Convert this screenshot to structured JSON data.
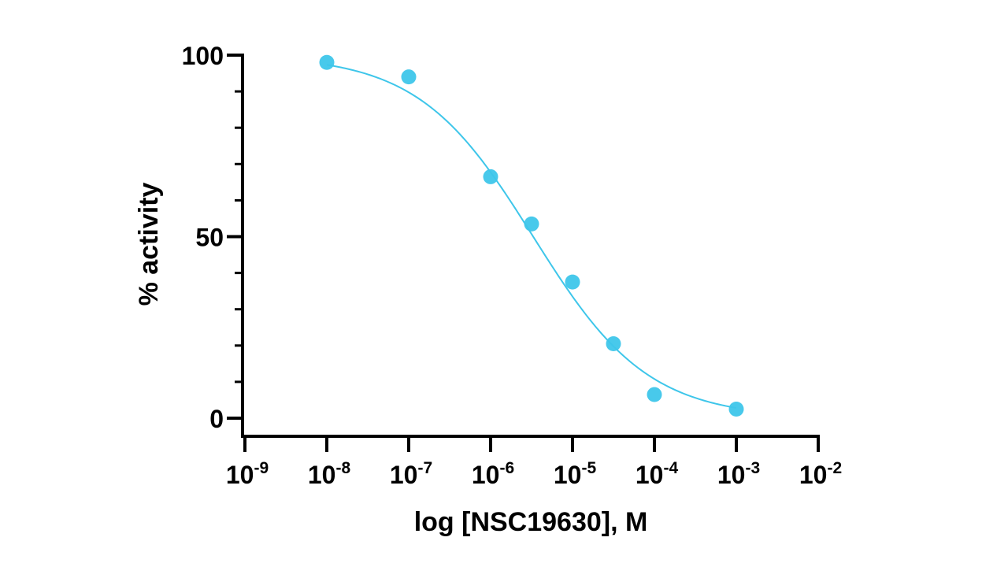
{
  "chart_data": {
    "type": "scatter",
    "title": "",
    "xlabel": "log [NSC19630], M",
    "ylabel": "% activity",
    "x_scale": "log10",
    "xlim_exponent": [
      -9,
      -2
    ],
    "ylim": [
      0,
      100
    ],
    "x_ticks": [
      {
        "base": "10",
        "exp": "-9",
        "value": -9
      },
      {
        "base": "10",
        "exp": "-8",
        "value": -8
      },
      {
        "base": "10",
        "exp": "-7",
        "value": -7
      },
      {
        "base": "10",
        "exp": "-6",
        "value": -6
      },
      {
        "base": "10",
        "exp": "-5",
        "value": -5
      },
      {
        "base": "10",
        "exp": "-4",
        "value": -4
      },
      {
        "base": "10",
        "exp": "-3",
        "value": -3
      },
      {
        "base": "10",
        "exp": "-2",
        "value": -2
      }
    ],
    "y_ticks": [
      {
        "label": "0",
        "value": 0
      },
      {
        "label": "50",
        "value": 50
      },
      {
        "label": "100",
        "value": 100
      }
    ],
    "y_minor_step": 10,
    "series": [
      {
        "name": "NSC19630",
        "color": "#3ec6ea",
        "points": [
          {
            "log_x": -8,
            "y": 98
          },
          {
            "log_x": -7,
            "y": 94
          },
          {
            "log_x": -6,
            "y": 66.5
          },
          {
            "log_x": -5.5,
            "y": 53.5
          },
          {
            "log_x": -5,
            "y": 37.5
          },
          {
            "log_x": -4.5,
            "y": 20.5
          },
          {
            "log_x": -4,
            "y": 6.5
          },
          {
            "log_x": -3,
            "y": 2.5
          }
        ],
        "fit": {
          "model": "four-parameter logistic",
          "top": 100,
          "bottom": 0,
          "log_ic50": -5.48,
          "hill_slope": -0.62,
          "range_log_x": [
            -8,
            -3
          ]
        }
      }
    ],
    "colors": {
      "axis": "#000000",
      "marker": "#3ec6ea",
      "curve": "#3ec6ea"
    }
  }
}
